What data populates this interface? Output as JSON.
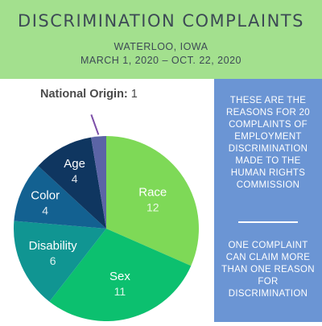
{
  "header": {
    "title": "DISCRIMINATION COMPLAINTS",
    "location": "WATERLOO, IOWA",
    "date_range": "MARCH 1, 2020 – OCT. 22, 2020"
  },
  "sidebar": {
    "text1": "THESE ARE THE REASONS FOR 20 COMPLAINTS OF EMPLOYMENT DISCRIMINATION MADE TO THE HUMAN RIGHTS COMMISSION",
    "text2": "ONE COMPLAINT CAN CLAIM MORE THAN ONE REASON FOR DISCRIMINATION"
  },
  "chart_data": {
    "type": "pie",
    "slices": [
      {
        "label": "Race",
        "value": 12,
        "color": "#7ed957"
      },
      {
        "label": "Sex",
        "value": 11,
        "color": "#0cc06f"
      },
      {
        "label": "Disability",
        "value": 6,
        "color": "#109592"
      },
      {
        "label": "Color",
        "value": 4,
        "color": "#136191"
      },
      {
        "label": "Age",
        "value": 4,
        "color": "#0f3660"
      },
      {
        "label": "National Origin",
        "value": 1,
        "color": "#5b64a6"
      }
    ],
    "label_text_color": "#ffffff",
    "callout_color": "#7d4fa8",
    "callout_text_color": "#4a4a4a"
  }
}
